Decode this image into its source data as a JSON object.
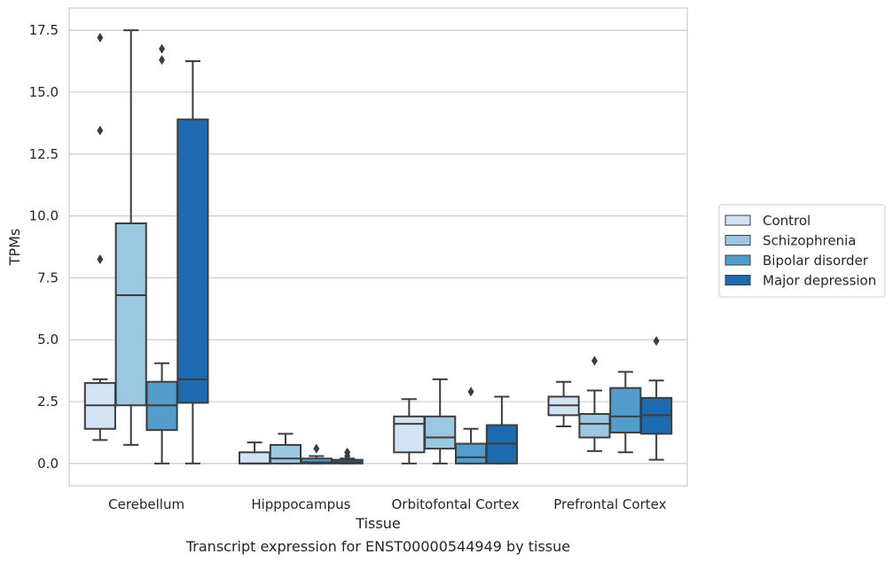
{
  "caption": "Transcript expression for ENST00000544949 by tissue",
  "chart_data": {
    "type": "box",
    "xlabel": "Tissue",
    "ylabel": "TPMs",
    "ylim": [
      -0.9,
      18.4
    ],
    "yticks": [
      "0.0",
      "2.5",
      "5.0",
      "7.5",
      "10.0",
      "12.5",
      "15.0",
      "17.5"
    ],
    "categories": [
      "Cerebellum",
      "Hipppocampus",
      "Orbitofontal Cortex",
      "Prefrontal Cortex"
    ],
    "grid": "horizontal",
    "legend_position": "right",
    "series": [
      {
        "name": "Control",
        "color": "#d2e3f3",
        "boxes": [
          {
            "whislo": 0.95,
            "q1": 1.4,
            "med": 2.35,
            "q3": 3.25,
            "whishi": 3.4,
            "fliers": [
              8.25,
              13.45,
              17.2
            ]
          },
          {
            "whislo": 0.0,
            "q1": 0.0,
            "med": 0.0,
            "q3": 0.45,
            "whishi": 0.85,
            "fliers": []
          },
          {
            "whislo": 0.0,
            "q1": 0.45,
            "med": 1.6,
            "q3": 1.9,
            "whishi": 2.6,
            "fliers": []
          },
          {
            "whislo": 1.5,
            "q1": 1.95,
            "med": 2.35,
            "q3": 2.7,
            "whishi": 3.3,
            "fliers": []
          }
        ]
      },
      {
        "name": "Schizophrenia",
        "color": "#9ac8e0",
        "boxes": [
          {
            "whislo": 0.75,
            "q1": 2.35,
            "med": 6.8,
            "q3": 9.7,
            "whishi": 17.5,
            "fliers": []
          },
          {
            "whislo": 0.0,
            "q1": 0.0,
            "med": 0.2,
            "q3": 0.75,
            "whishi": 1.2,
            "fliers": []
          },
          {
            "whislo": 0.0,
            "q1": 0.6,
            "med": 1.05,
            "q3": 1.9,
            "whishi": 3.4,
            "fliers": []
          },
          {
            "whislo": 0.5,
            "q1": 1.05,
            "med": 1.6,
            "q3": 2.0,
            "whishi": 2.95,
            "fliers": [
              4.15
            ]
          }
        ]
      },
      {
        "name": "Bipolar disorder",
        "color": "#529dcc",
        "boxes": [
          {
            "whislo": 0.0,
            "q1": 1.35,
            "med": 2.35,
            "q3": 3.3,
            "whishi": 4.05,
            "fliers": [
              16.3,
              16.75
            ]
          },
          {
            "whislo": 0.0,
            "q1": 0.0,
            "med": 0.05,
            "q3": 0.2,
            "whishi": 0.3,
            "fliers": [
              0.6
            ]
          },
          {
            "whislo": 0.0,
            "q1": 0.0,
            "med": 0.25,
            "q3": 0.8,
            "whishi": 1.4,
            "fliers": [
              2.9
            ]
          },
          {
            "whislo": 0.45,
            "q1": 1.25,
            "med": 1.9,
            "q3": 3.05,
            "whishi": 3.7,
            "fliers": []
          }
        ]
      },
      {
        "name": "Major depression",
        "color": "#1c6bb0",
        "boxes": [
          {
            "whislo": 0.0,
            "q1": 2.45,
            "med": 3.4,
            "q3": 13.9,
            "whishi": 16.25,
            "fliers": []
          },
          {
            "whislo": 0.0,
            "q1": 0.0,
            "med": 0.05,
            "q3": 0.15,
            "whishi": 0.2,
            "fliers": [
              0.3,
              0.45
            ]
          },
          {
            "whislo": 0.0,
            "q1": 0.0,
            "med": 0.8,
            "q3": 1.55,
            "whishi": 2.7,
            "fliers": []
          },
          {
            "whislo": 0.15,
            "q1": 1.2,
            "med": 1.95,
            "q3": 2.65,
            "whishi": 3.35,
            "fliers": [
              4.95
            ]
          }
        ]
      }
    ]
  }
}
